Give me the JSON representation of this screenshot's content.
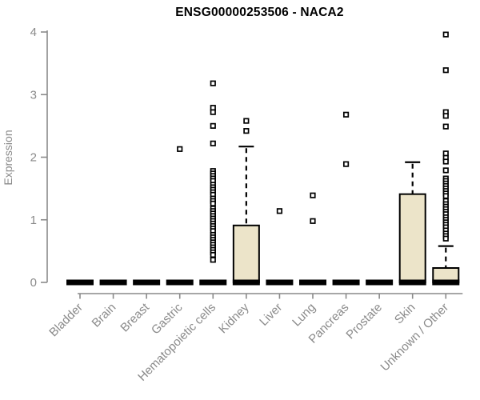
{
  "chart_data": {
    "type": "boxplot",
    "title": "ENSG00000253506 - NACA2",
    "ylabel": "Expression",
    "xlabel": "",
    "ylim": [
      0,
      4
    ],
    "yticks": [
      0,
      1,
      2,
      3,
      4
    ],
    "grid": false,
    "legend": false,
    "colors": {
      "box_fill": "#ece4c9",
      "box_stroke": "#000000",
      "median": "#000000",
      "whisker": "#000000",
      "outlier_fill": "#ffffff",
      "outlier_stroke": "#000000",
      "axis": "#8a8a8a",
      "tick_labels": "#8a8a8a",
      "title": "#000000"
    },
    "categories": [
      {
        "label": "Bladder",
        "q1": 0,
        "median": 0,
        "q3": 0,
        "whisker_low": 0,
        "whisker_high": 0,
        "outliers": []
      },
      {
        "label": "Brain",
        "q1": 0,
        "median": 0,
        "q3": 0,
        "whisker_low": 0,
        "whisker_high": 0,
        "outliers": []
      },
      {
        "label": "Breast",
        "q1": 0,
        "median": 0,
        "q3": 0,
        "whisker_low": 0,
        "whisker_high": 0,
        "outliers": []
      },
      {
        "label": "Gastric",
        "q1": 0,
        "median": 0,
        "q3": 0,
        "whisker_low": 0,
        "whisker_high": 0,
        "outliers": [
          2.13
        ]
      },
      {
        "label": "Hematopoietic cells",
        "q1": 0,
        "median": 0,
        "q3": 0,
        "whisker_low": 0,
        "whisker_high": 0,
        "outliers": [
          3.18,
          2.79,
          2.72,
          2.5,
          2.22,
          1.78,
          1.74,
          1.7,
          1.66,
          1.62,
          1.56,
          1.52,
          1.48,
          1.44,
          1.4,
          1.34,
          1.3,
          1.26,
          1.18,
          1.14,
          1.1,
          1.06,
          1.02,
          0.98,
          0.94,
          0.9,
          0.86,
          0.82,
          0.76,
          0.72,
          0.68,
          0.64,
          0.6,
          0.56,
          0.52,
          0.48,
          0.44,
          0.36
        ]
      },
      {
        "label": "Kidney",
        "q1": 0,
        "median": 0,
        "q3": 0.91,
        "whisker_low": 0,
        "whisker_high": 2.17,
        "outliers": [
          2.58,
          2.42
        ]
      },
      {
        "label": "Liver",
        "q1": 0,
        "median": 0,
        "q3": 0,
        "whisker_low": 0,
        "whisker_high": 0,
        "outliers": [
          1.14
        ]
      },
      {
        "label": "Lung",
        "q1": 0,
        "median": 0,
        "q3": 0,
        "whisker_low": 0,
        "whisker_high": 0,
        "outliers": [
          1.39,
          0.98
        ]
      },
      {
        "label": "Pancreas",
        "q1": 0,
        "median": 0,
        "q3": 0,
        "whisker_low": 0,
        "whisker_high": 0,
        "outliers": [
          2.68,
          1.89
        ]
      },
      {
        "label": "Prostate",
        "q1": 0,
        "median": 0,
        "q3": 0,
        "whisker_low": 0,
        "whisker_high": 0,
        "outliers": []
      },
      {
        "label": "Skin",
        "q1": 0,
        "median": 0,
        "q3": 1.41,
        "whisker_low": 0,
        "whisker_high": 1.92,
        "outliers": []
      },
      {
        "label": "Unknown / Other",
        "q1": 0,
        "median": 0,
        "q3": 0.23,
        "whisker_low": 0,
        "whisker_high": 0.58,
        "outliers": [
          3.96,
          3.39,
          2.72,
          2.66,
          2.49,
          2.06,
          1.99,
          1.93,
          1.79,
          1.66,
          1.62,
          1.58,
          1.54,
          1.5,
          1.46,
          1.42,
          1.38,
          1.3,
          1.25,
          1.21,
          1.17,
          1.13,
          1.09,
          1.04,
          1.0,
          0.96,
          0.92,
          0.88,
          0.83,
          0.78,
          0.74,
          0.7
        ]
      }
    ]
  }
}
